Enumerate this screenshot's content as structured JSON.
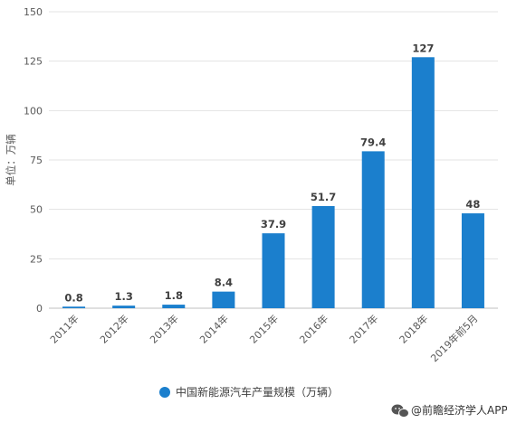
{
  "chart_data": {
    "type": "bar",
    "categories": [
      "2011年",
      "2012年",
      "2013年",
      "2014年",
      "2015年",
      "2016年",
      "2017年",
      "2018年",
      "2019年前5月"
    ],
    "series": [
      {
        "name": "中国新能源汽车产量规模（万辆）",
        "values": [
          0.8,
          1.3,
          1.8,
          8.4,
          37.9,
          51.7,
          79.4,
          127,
          48
        ],
        "labels": [
          "0.8",
          "1.3",
          "1.8",
          "8.4",
          "37.9",
          "51.7",
          "79.4",
          "127",
          "48"
        ],
        "color": "#1b7fcd"
      }
    ],
    "ylabel": "单位：万辆",
    "ylim": [
      0,
      150
    ],
    "yticks": [
      0,
      25,
      50,
      75,
      100,
      125,
      150
    ],
    "grid": true,
    "legend_position": "bottom"
  },
  "source": {
    "icon": "wechat-icon",
    "text": "@前瞻经济学人APP"
  }
}
